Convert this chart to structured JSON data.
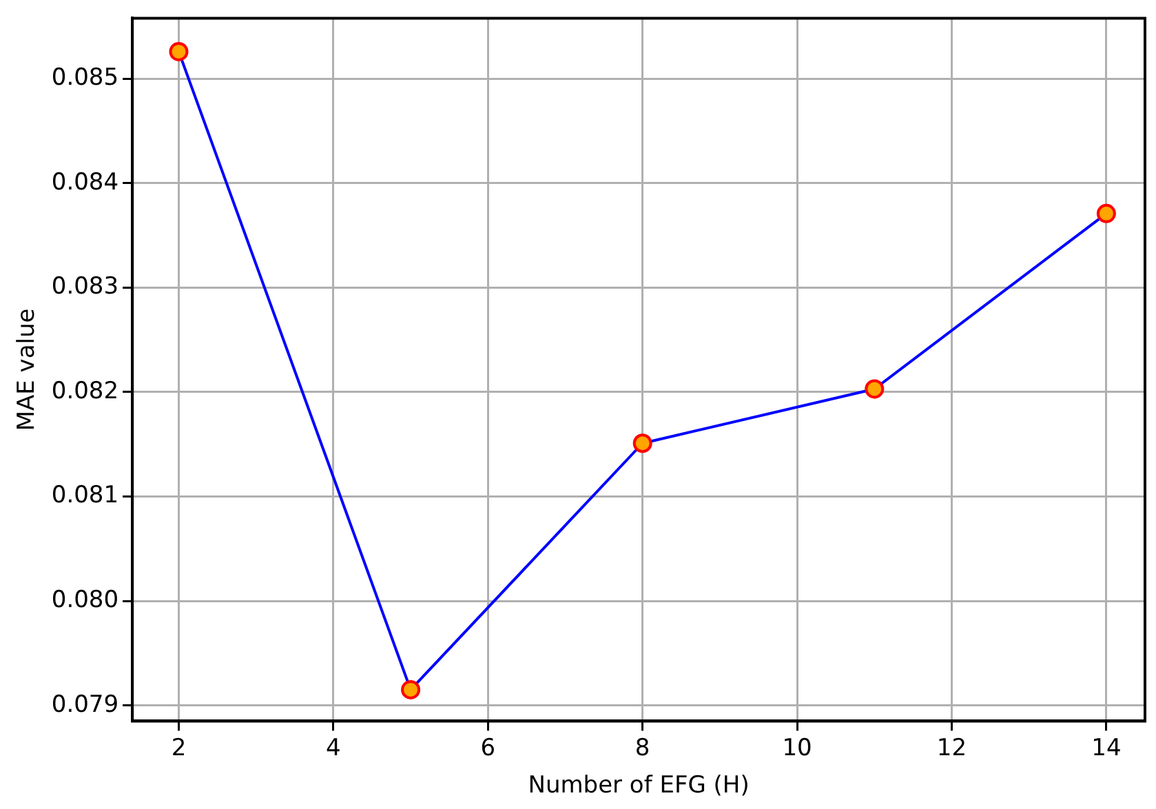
{
  "chart_data": {
    "type": "line",
    "xlabel": "Number of EFG (H)",
    "ylabel": "MAE value",
    "x": [
      2,
      5,
      8,
      11,
      14
    ],
    "series": [
      {
        "color": "#0000ff",
        "values": [
          0.08526,
          0.07915,
          0.08151,
          0.08203,
          0.08371
        ]
      }
    ],
    "xlim": [
      1.4,
      14.5
    ],
    "xticks": [
      2,
      4,
      6,
      8,
      10,
      12,
      14
    ],
    "ylim": [
      0.07885,
      0.08558
    ],
    "yticks": [
      {
        "value": 0.079,
        "label": "0.079"
      },
      {
        "value": 0.08,
        "label": "0.080"
      },
      {
        "value": 0.081,
        "label": "0.081"
      },
      {
        "value": 0.082,
        "label": "0.082"
      },
      {
        "value": 0.083,
        "label": "0.083"
      },
      {
        "value": 0.084,
        "label": "0.084"
      },
      {
        "value": 0.085,
        "label": "0.085"
      }
    ],
    "grid": true,
    "marker": "circle",
    "line_style": "solid",
    "legend": false
  }
}
